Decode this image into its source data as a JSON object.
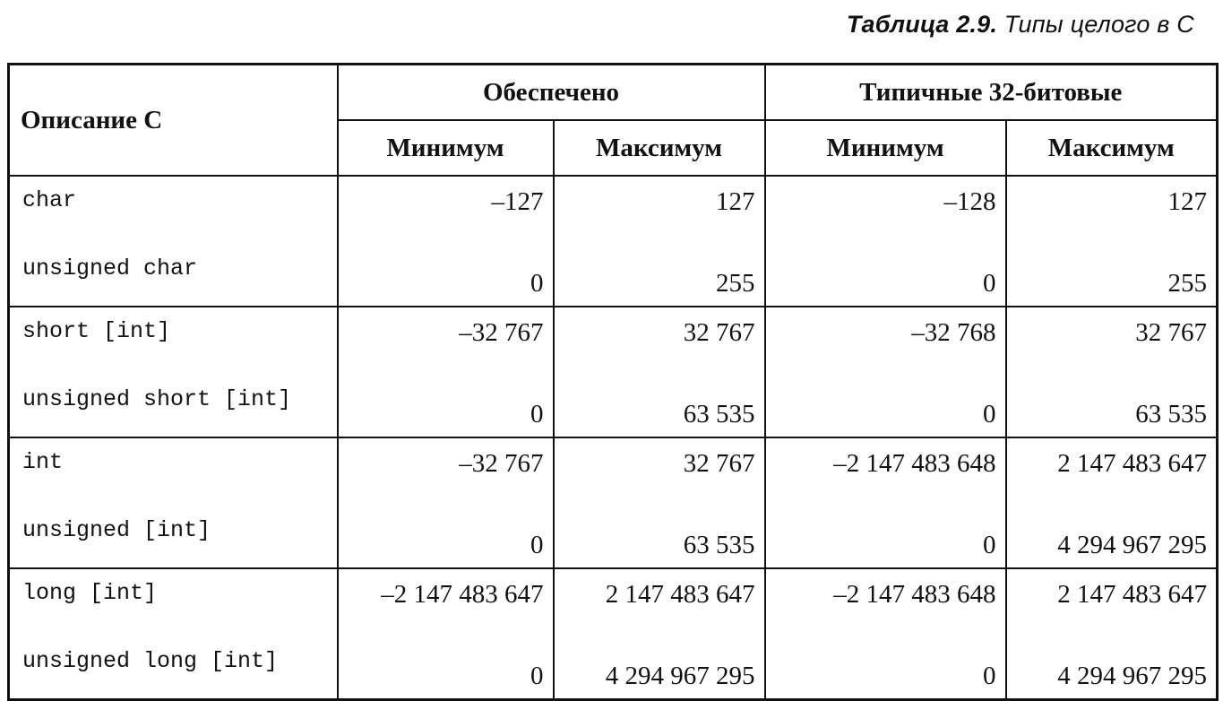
{
  "caption": {
    "label": "Таблица 2.9.",
    "text": "Типы целого в C"
  },
  "table": {
    "header": {
      "description": "Описание C",
      "group_guaranteed": "Обеспечено",
      "group_typical": "Типичные 32-битовые",
      "min": "Минимум",
      "max": "Максимум"
    },
    "rows": [
      {
        "type": "char",
        "g_min": "–127",
        "g_max": "127",
        "t_min": "–128",
        "t_max": "127"
      },
      {
        "type": "unsigned char",
        "g_min": "0",
        "g_max": "255",
        "t_min": "0",
        "t_max": "255"
      },
      {
        "type": "short [int]",
        "g_min": "–32 767",
        "g_max": "32 767",
        "t_min": "–32 768",
        "t_max": "32 767"
      },
      {
        "type": "unsigned short [int]",
        "g_min": "0",
        "g_max": "63 535",
        "t_min": "0",
        "t_max": "63 535"
      },
      {
        "type": "int",
        "g_min": "–32 767",
        "g_max": "32 767",
        "t_min": "–2 147 483 648",
        "t_max": "2 147 483 647"
      },
      {
        "type": "unsigned [int]",
        "g_min": "0",
        "g_max": "63 535",
        "t_min": "0",
        "t_max": "4 294 967 295"
      },
      {
        "type": "long [int]",
        "g_min": "–2 147 483 647",
        "g_max": "2 147 483 647",
        "t_min": "–2 147 483 648",
        "t_max": "2 147 483 647"
      },
      {
        "type": "unsigned long [int]",
        "g_min": "0",
        "g_max": "4 294 967 295",
        "t_min": "0",
        "t_max": "4 294 967 295"
      }
    ]
  }
}
